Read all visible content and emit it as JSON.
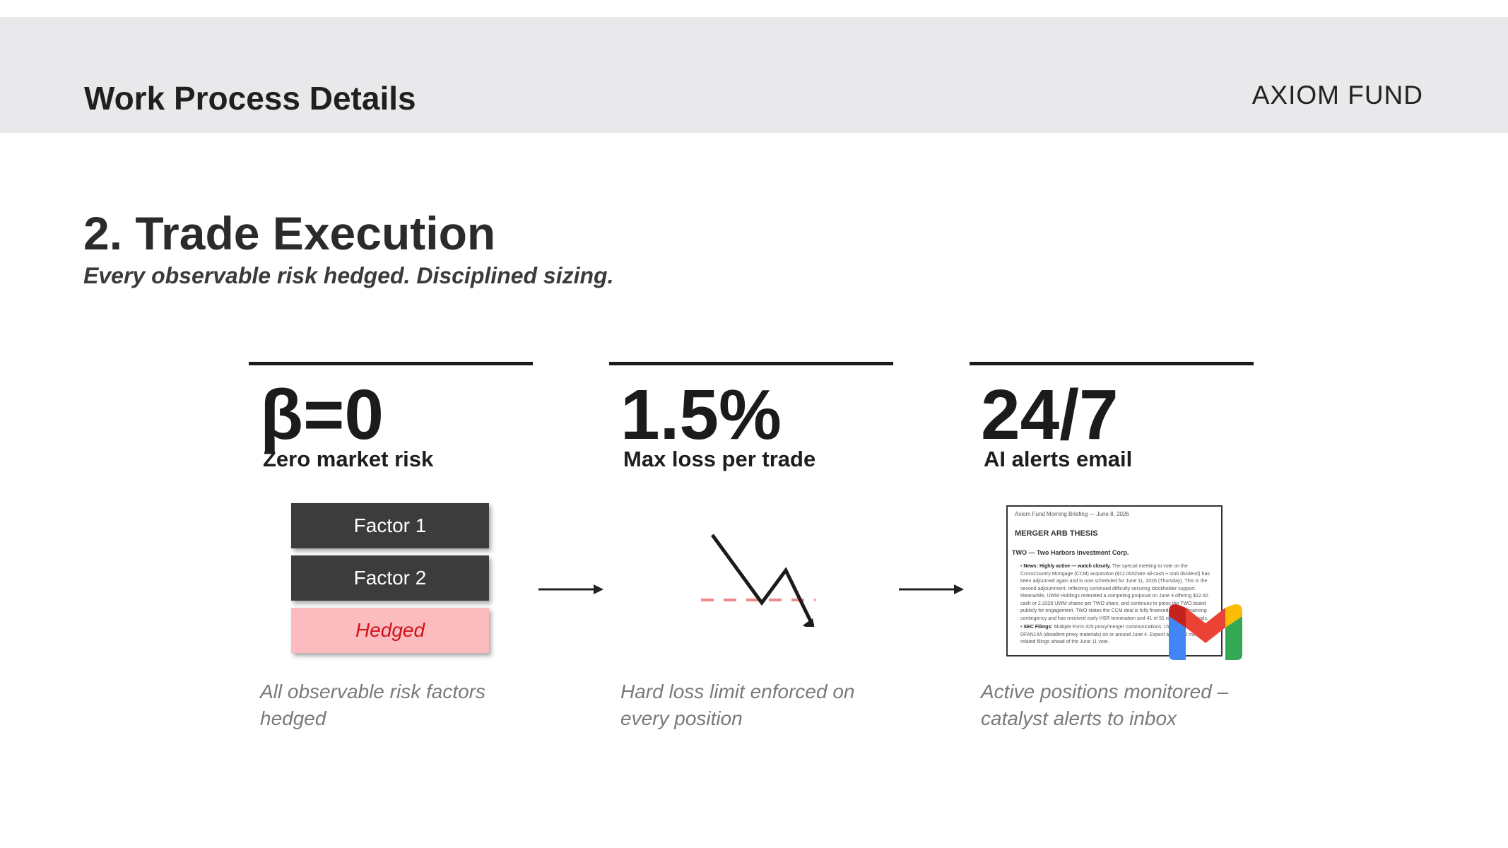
{
  "header": {
    "title": "Work Process Details",
    "brand": "AXIOM FUND"
  },
  "section": {
    "title": "2. Trade Execution",
    "tagline": "Every observable risk hedged. Disciplined sizing."
  },
  "columns": [
    {
      "stat": "β=0",
      "label": "Zero market risk",
      "caption": "All observable risk factors hedged",
      "factors": [
        "Factor 1",
        "Factor 2",
        "Hedged"
      ]
    },
    {
      "stat": "1.5%",
      "label": "Max loss per trade",
      "caption": "Hard loss limit enforced on every position"
    },
    {
      "stat": "24/7",
      "label": "AI alerts email",
      "caption": "Active positions monitored – catalyst alerts to inbox",
      "email": {
        "header": "Axiom Fund Morning Briefing — June 8, 2026",
        "heading": "MERGER ARB THESIS",
        "subheading": "TWO — Two Harbors Investment Corp.",
        "bullet1_title": "News: Highly active — watch closely.",
        "bullet1_text": "The special meeting to vote on the CrossCountry Mortgage (CCM) acquisition ($12.00/share all-cash + stub dividend) has been adjourned again and is now scheduled for June 11, 2026 (Thursday). This is the second adjournment, reflecting continued difficulty securing stockholder support. Meanwhile, UWM Holdings reiterated a competing proposal on June 4 offering $12.50 cash or 2.3328 UWM shares per TWO share, and continues to press the TWO board publicly for engagement. TWO states the CCM deal is fully financed with no financing contingency and has received early HSR termination and 41 of 51 required approvals.",
        "bullet2_title": "SEC Filings:",
        "bullet2_text": "Multiple Form 425 proxy/merger communications. UWM filed a DFAN14A (dissident proxy materials) on or around June 4. Expect additional merger-related filings ahead of the June 11 vote."
      }
    }
  ],
  "colors": {
    "header_bg": "#e9e9ec",
    "factor_bg": "#3c3c3c",
    "hedged_bg": "#fcbcbf",
    "hedged_text": "#d0131b",
    "loss_limit": "#f08a8a",
    "rule": "#1b1b1b"
  },
  "icons": [
    "arrow-right-icon",
    "loss-chart-icon",
    "email-preview",
    "gmail-icon"
  ]
}
